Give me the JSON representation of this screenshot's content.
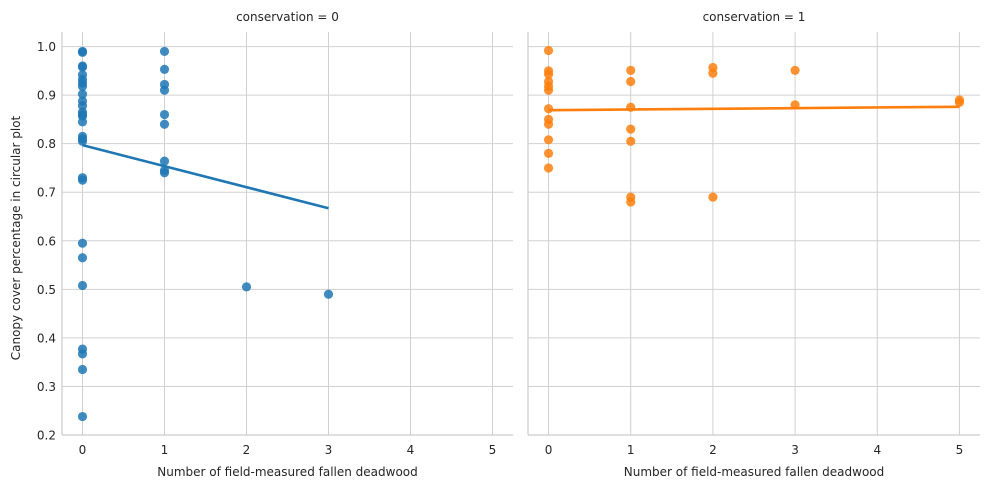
{
  "chart_data": {
    "type": "scatter",
    "ylabel": "Canopy cover percentage in circular plot",
    "xlabel": "Number of field-measured fallen deadwood",
    "xlim": [
      -0.25,
      5.25
    ],
    "ylim": [
      0.2,
      1.03
    ],
    "x_ticks": [
      "0",
      "1",
      "2",
      "3",
      "4",
      "5"
    ],
    "y_ticks": [
      "0.2",
      "0.3",
      "0.4",
      "0.5",
      "0.6",
      "0.7",
      "0.8",
      "0.9",
      "1.0"
    ],
    "grid": true,
    "panels": [
      {
        "title": "conservation = 0",
        "color": "#1f77b4",
        "points": [
          [
            0,
            0.99
          ],
          [
            0,
            0.988
          ],
          [
            0,
            0.96
          ],
          [
            0,
            0.958
          ],
          [
            0,
            0.942
          ],
          [
            0,
            0.932
          ],
          [
            0,
            0.925
          ],
          [
            0,
            0.918
          ],
          [
            0,
            0.902
          ],
          [
            0,
            0.888
          ],
          [
            0,
            0.878
          ],
          [
            0,
            0.865
          ],
          [
            0,
            0.86
          ],
          [
            0,
            0.857
          ],
          [
            0,
            0.845
          ],
          [
            0,
            0.815
          ],
          [
            0,
            0.81
          ],
          [
            0,
            0.805
          ],
          [
            0,
            0.73
          ],
          [
            0,
            0.725
          ],
          [
            0,
            0.595
          ],
          [
            0,
            0.565
          ],
          [
            0,
            0.508
          ],
          [
            0,
            0.377
          ],
          [
            0,
            0.367
          ],
          [
            0,
            0.335
          ],
          [
            0,
            0.238
          ],
          [
            1,
            0.99
          ],
          [
            1,
            0.953
          ],
          [
            1,
            0.922
          ],
          [
            1,
            0.91
          ],
          [
            1,
            0.86
          ],
          [
            1,
            0.84
          ],
          [
            1,
            0.764
          ],
          [
            1,
            0.745
          ],
          [
            1,
            0.74
          ],
          [
            2,
            0.505
          ],
          [
            3,
            0.49
          ]
        ],
        "trend": [
          [
            0,
            0.797
          ],
          [
            3,
            0.667
          ]
        ]
      },
      {
        "title": "conservation = 1",
        "color": "#ff7f0e",
        "points": [
          [
            0,
            0.992
          ],
          [
            0,
            0.95
          ],
          [
            0,
            0.943
          ],
          [
            0,
            0.928
          ],
          [
            0,
            0.918
          ],
          [
            0,
            0.91
          ],
          [
            0,
            0.872
          ],
          [
            0,
            0.85
          ],
          [
            0,
            0.84
          ],
          [
            0,
            0.808
          ],
          [
            0,
            0.78
          ],
          [
            0,
            0.75
          ],
          [
            1,
            0.951
          ],
          [
            1,
            0.928
          ],
          [
            1,
            0.875
          ],
          [
            1,
            0.83
          ],
          [
            1,
            0.805
          ],
          [
            1,
            0.69
          ],
          [
            1,
            0.68
          ],
          [
            2,
            0.957
          ],
          [
            2,
            0.945
          ],
          [
            2,
            0.69
          ],
          [
            3,
            0.951
          ],
          [
            3,
            0.88
          ],
          [
            5,
            0.89
          ],
          [
            5,
            0.885
          ]
        ],
        "trend": [
          [
            0,
            0.869
          ],
          [
            5,
            0.876
          ]
        ]
      }
    ]
  }
}
